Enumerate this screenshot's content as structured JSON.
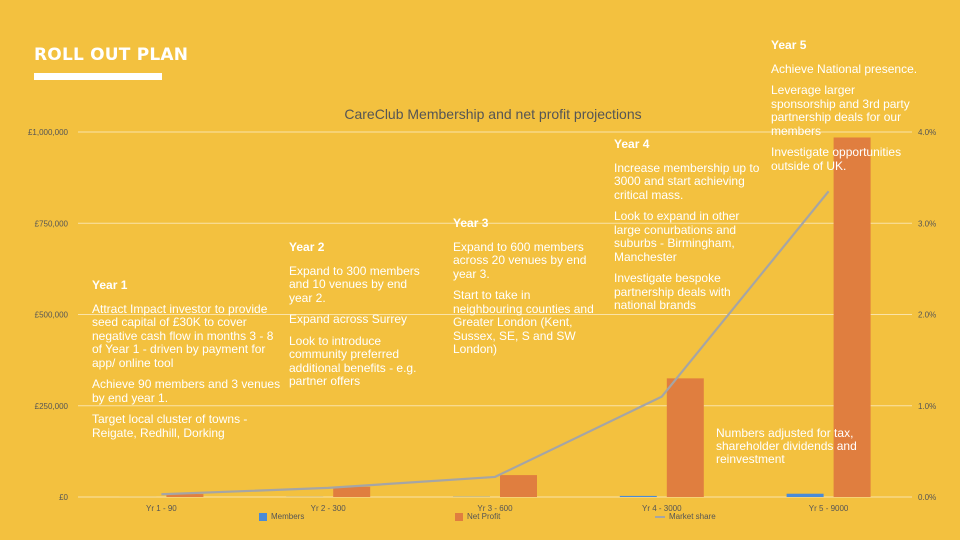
{
  "slide": {
    "title": "ROLL OUT PLAN"
  },
  "chart_data": {
    "type": "bar",
    "title": "CareClub Membership and net profit projections",
    "categories": [
      "Yr 1 - 90",
      "Yr 2 - 300",
      "Yr 3 - 600",
      "Yr 4 - 3000",
      "Yr 5 - 9000"
    ],
    "y_ticks": [
      "£0",
      "£250,000",
      "£500,000",
      "£750,000",
      "£1,000,000"
    ],
    "y_range": [
      0,
      1000000
    ],
    "y2_ticks": [
      "0.0%",
      "1.0%",
      "2.0%",
      "3.0%",
      "4.0%"
    ],
    "y2_range": [
      0,
      4
    ],
    "grid": true,
    "legend_position": "bottom",
    "series": [
      {
        "name": "Members",
        "type": "bar",
        "axis": "left",
        "color": "#4a8bd6",
        "values": [
          90,
          300,
          600,
          3000,
          9000
        ]
      },
      {
        "name": "Net Profit",
        "type": "bar",
        "axis": "left",
        "color": "#e07e3f",
        "values": [
          8000,
          28000,
          60000,
          325000,
          985000
        ]
      },
      {
        "name": "Market share",
        "type": "line",
        "axis": "right",
        "color": "#a5a5a5",
        "values": [
          0.03,
          0.1,
          0.22,
          1.1,
          3.35
        ]
      }
    ]
  },
  "blocks": [
    {
      "heading": "Year 1",
      "paragraphs": [
        "Attract Impact investor to provide seed capital of £30K to cover negative cash flow in months 3 - 8 of Year 1 - driven by payment for app/ online tool",
        "Achieve 90 members and 3 venues by end year 1.",
        "Target local cluster of towns - Reigate, Redhill, Dorking"
      ]
    },
    {
      "heading": "Year 2",
      "paragraphs": [
        "Expand to 300 members and 10 venues by end year 2.",
        "Expand across Surrey",
        "Look to introduce community preferred additional benefits - e.g. partner offers"
      ]
    },
    {
      "heading": "Year 3",
      "paragraphs": [
        "Expand to 600 members across 20 venues by end year 3.",
        "Start to take in neighbouring counties and Greater London (Kent, Sussex, SE, S and SW London)"
      ]
    },
    {
      "heading": "Year 4",
      "paragraphs": [
        "Increase membership up to 3000 and start achieving critical mass.",
        "Look to expand in other large conurbations and suburbs - Birmingham, Manchester",
        "Investigate bespoke partnership deals with national brands"
      ]
    },
    {
      "heading": "Year 5",
      "paragraphs": [
        "Achieve National presence.",
        "Leverage larger sponsorship and 3rd party partnership deals for our members",
        "Investigate opportunities outside of UK."
      ]
    }
  ],
  "note": "Numbers adjusted for tax, shareholder dividends and reinvestment"
}
